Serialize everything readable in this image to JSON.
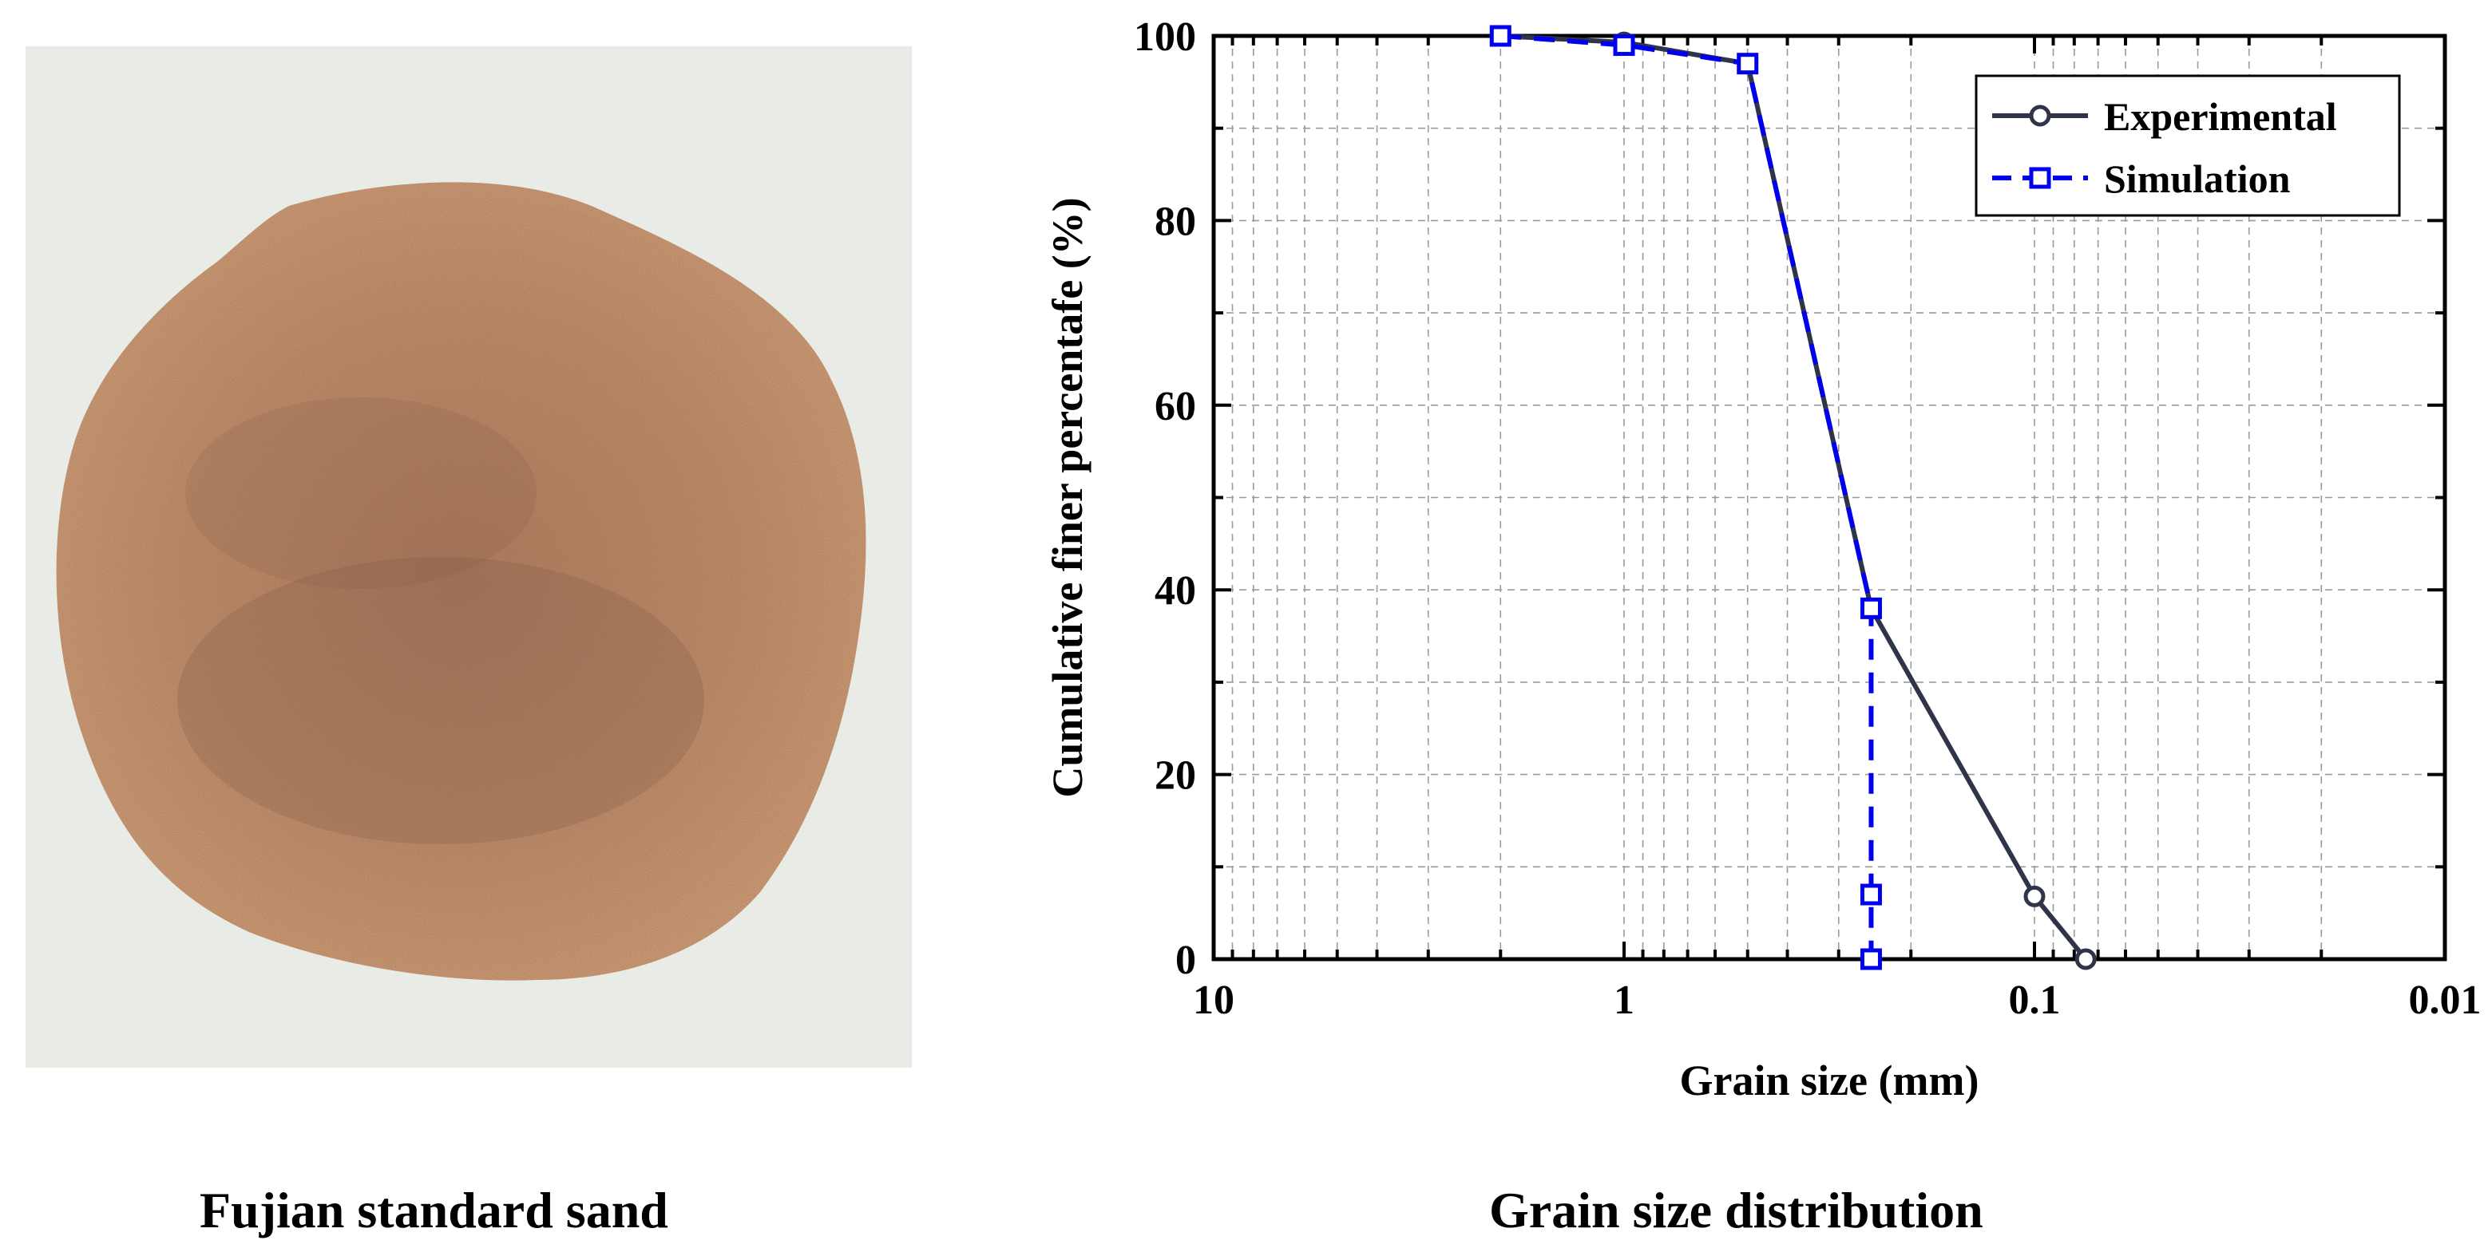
{
  "captions": {
    "left": "Fujian standard sand",
    "right": "Grain size distribution"
  },
  "colors": {
    "experimental": "#2f3448",
    "simulation": "#0000ee",
    "photo_background": "#e9ece6",
    "sand_base": "#b9815d"
  },
  "chart_data": {
    "type": "line",
    "xlabel": "Grain size (mm)",
    "ylabel": "Cumulative finer percentafe (%)",
    "x_scale": "log",
    "x_reversed": true,
    "xlim": [
      10,
      0.01
    ],
    "ylim": [
      0,
      100
    ],
    "x_ticks": [
      10,
      1,
      0.1,
      0.01
    ],
    "x_tick_labels": [
      "10",
      "1",
      "0.1",
      "0.01"
    ],
    "y_ticks": [
      0,
      20,
      40,
      60,
      80,
      100
    ],
    "y_tick_labels": [
      "0",
      "20",
      "40",
      "60",
      "80",
      "100"
    ],
    "grid": true,
    "legend_position": "top-right",
    "series": [
      {
        "name": "Experimental",
        "marker": "circle",
        "line": "solid",
        "x": [
          2.0,
          1.0,
          0.5,
          0.25,
          0.1,
          0.075
        ],
        "y": [
          100,
          99.3,
          97,
          38,
          6.8,
          0
        ]
      },
      {
        "name": "Simulation",
        "marker": "square",
        "line": "dashed",
        "x": [
          2.0,
          1.0,
          0.5,
          0.25,
          0.25,
          0.25
        ],
        "y": [
          100,
          99,
          97,
          38,
          7,
          0
        ]
      }
    ]
  }
}
